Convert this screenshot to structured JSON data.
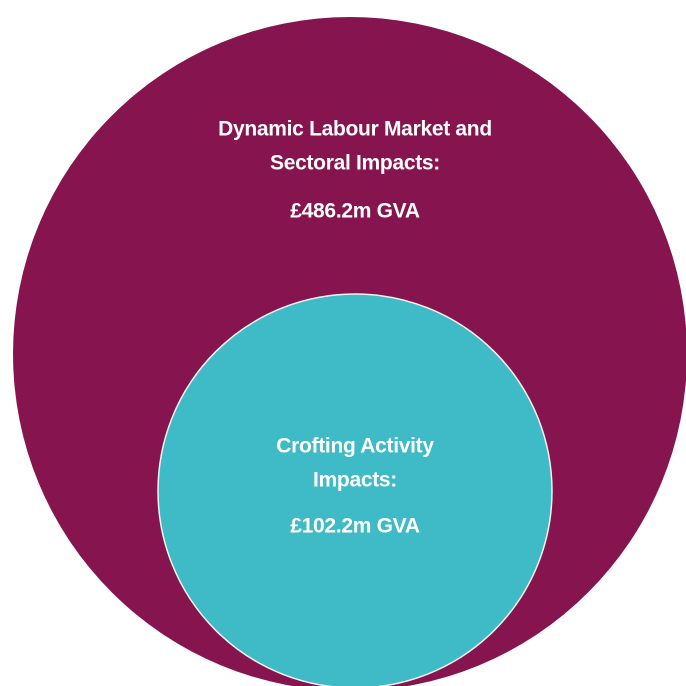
{
  "nodes": [
    {
      "label_lines": [
        "Dynamic Labour Market and",
        "Sectoral Impacts:"
      ],
      "value": "£486.2m GVA"
    },
    {
      "label_lines": [
        "Crofting Activity",
        "Impacts:"
      ],
      "value": "£102.2m GVA"
    }
  ]
}
